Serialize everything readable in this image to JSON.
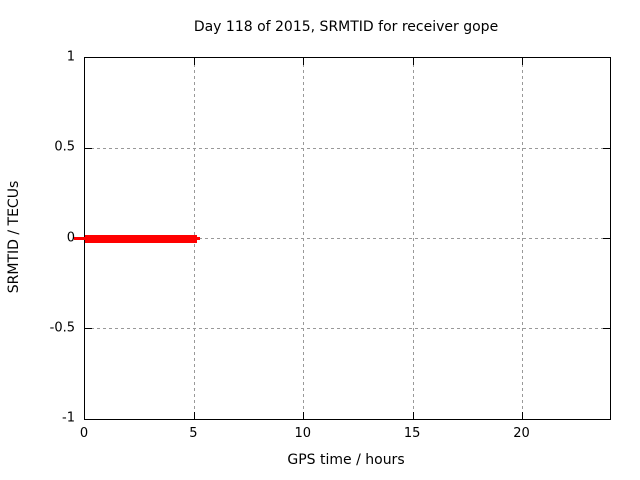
{
  "chart_data": {
    "type": "line",
    "title": "Day 118 of 2015, SRMTID for receiver gope",
    "xlabel": "GPS time / hours",
    "ylabel": "SRMTID / TECUs",
    "xlim": [
      0,
      24
    ],
    "ylim": [
      -1,
      1
    ],
    "xticks": [
      0,
      5,
      10,
      15,
      20
    ],
    "yticks": [
      -1,
      -0.5,
      0,
      0.5,
      1
    ],
    "grid": true,
    "legend_position": "none",
    "series": [
      {
        "name": "SRMTID",
        "color": "#ff0000",
        "style": "thick-line",
        "points": [
          [
            0,
            0
          ],
          [
            5.1,
            0
          ]
        ]
      }
    ],
    "colors": {
      "background": "#ffffff",
      "border": "#000000",
      "grid": "#999999",
      "text": "#000000"
    }
  }
}
